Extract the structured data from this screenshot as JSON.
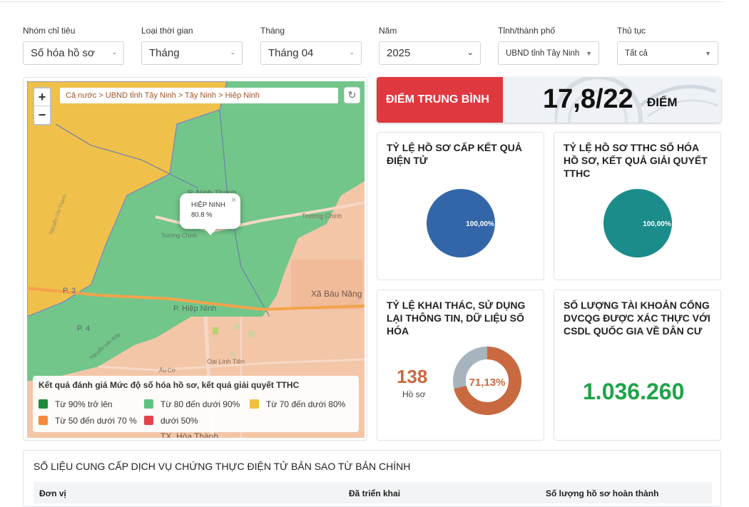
{
  "filters": [
    {
      "label": "Nhóm chỉ tiêu",
      "value": "Số hóa hồ sơ"
    },
    {
      "label": "Loại thời gian",
      "value": "Tháng"
    },
    {
      "label": "Tháng",
      "value": "Tháng 04"
    },
    {
      "label": "Năm",
      "value": "2025"
    },
    {
      "label": "Tỉnh/thành phố",
      "value": "UBND tỉnh Tây Ninh"
    },
    {
      "label": "Thủ tục",
      "value": "Tất cả"
    }
  ],
  "map": {
    "breadcrumb": "Cả nước > UBND tỉnh Tây Ninh > Tây Ninh > Hiệp Ninh",
    "zoom_in": "+",
    "zoom_out": "−",
    "refresh_icon": "↻",
    "popup": {
      "name": "HIỆP NINH",
      "value": "80.8 %",
      "close": "×"
    },
    "places": [
      "P. Ninh Thạnh",
      "Trường Chinh",
      "Trường Chinh",
      "P. 3",
      "P. 4",
      "P. Hiệp Ninh",
      "Xã Bàu Năng",
      "Âu Cơ",
      "Oai Linh Tiên",
      "TX. Hòa Thành",
      "Nguyễn Chí Thanh",
      "Nguyễn Văn Rốp"
    ],
    "legend": {
      "title": "Kết quả đánh giá Mức độ số hóa hồ sơ, kết quả giải quyết TTHC",
      "items": [
        {
          "label": "Từ 90% trở lên",
          "color": "#1e8b3c"
        },
        {
          "label": "Từ 80 đến dưới 90%",
          "color": "#5ec27f"
        },
        {
          "label": "Từ 70 đến dưới 80%",
          "color": "#f0c13c"
        },
        {
          "label": "Từ 50 đến dưới 70 %",
          "color": "#f7893b"
        },
        {
          "label": "dưới 50%",
          "color": "#e2434b"
        }
      ]
    }
  },
  "average": {
    "label": "ĐIỂM TRUNG BÌNH",
    "value": "17,8/22",
    "unit": "ĐIỂM"
  },
  "cards": {
    "c1": {
      "title": "TỶ LỆ HỒ SƠ CẤP KẾT QUẢ ĐIỆN TỬ",
      "pie_label": "100,00%",
      "percent": 100,
      "color": "#3266a8"
    },
    "c2": {
      "title": "TỶ LỆ HỒ SƠ TTHC SỐ HÓA HỒ SƠ, KẾT QUẢ GIẢI QUYẾT TTHC",
      "pie_label": "100,00%",
      "percent": 100,
      "color": "#1b8c8a"
    },
    "c3": {
      "title": "TỶ LỆ KHAI THÁC, SỬ DỤNG LẠI THÔNG TIN, DỮ LIỆU SỐ HÓA",
      "count": "138",
      "count_unit": "Hồ sơ",
      "donut_label": "71,13%",
      "percent": 71.13,
      "color": "#c9693f",
      "rest_color": "#a7b4bd"
    },
    "c4": {
      "title": "SỐ LƯỢNG TÀI KHOẢN CỔNG DVCQG ĐƯỢC XÁC THỰC VỚI CSDL QUỐC GIA VỀ DÂN CƯ",
      "value": "1.036.260"
    }
  },
  "bottom": {
    "title": "SỐ LIỆU CUNG CẤP DỊCH VỤ CHỨNG THỰC ĐIỆN TỬ BẢN SAO TỪ BẢN CHÍNH",
    "columns": [
      "Đơn vị",
      "Đã triển khai",
      "Số lượng hồ sơ hoàn thành"
    ]
  }
}
